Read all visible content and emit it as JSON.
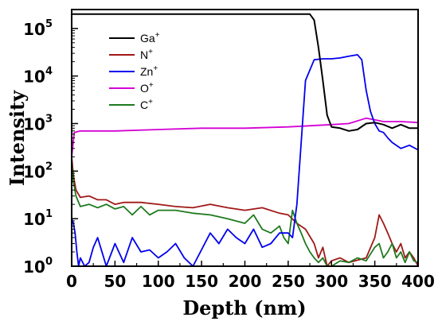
{
  "chart_data": {
    "type": "line",
    "xlabel": "Depth (nm)",
    "ylabel": "Intensity",
    "xlim": [
      0,
      400
    ],
    "ylim": [
      1,
      250000
    ],
    "yscale": "log",
    "grid": false,
    "legend_position": "top-left",
    "x_ticks": [
      "0",
      "50",
      "100",
      "150",
      "200",
      "250",
      "300",
      "350",
      "400"
    ],
    "y_ticks": [
      {
        "value": 1,
        "base": "10",
        "exp": "0"
      },
      {
        "value": 10,
        "base": "10",
        "exp": "1"
      },
      {
        "value": 100,
        "base": "10",
        "exp": "2"
      },
      {
        "value": 1000,
        "base": "10",
        "exp": "3"
      },
      {
        "value": 10000,
        "base": "10",
        "exp": "4"
      },
      {
        "value": 100000,
        "base": "10",
        "exp": "5"
      }
    ],
    "series": [
      {
        "name": "Ga",
        "sup": "+",
        "color": "#000000",
        "legend_row": 0,
        "x": [
          0,
          5,
          50,
          100,
          150,
          200,
          250,
          275,
          280,
          285,
          290,
          295,
          300,
          310,
          320,
          330,
          340,
          350,
          360,
          370,
          380,
          390,
          400
        ],
        "y": [
          200000,
          200000,
          200000,
          200000,
          200000,
          200000,
          200000,
          200000,
          150000,
          40000,
          8000,
          1500,
          850,
          800,
          700,
          750,
          1000,
          1050,
          950,
          800,
          950,
          800,
          800
        ]
      },
      {
        "name": "N",
        "sup": "+",
        "color": "#a01818",
        "legend_row": 1,
        "x": [
          0,
          2,
          5,
          10,
          20,
          30,
          40,
          50,
          60,
          80,
          100,
          120,
          140,
          160,
          180,
          200,
          220,
          240,
          250,
          260,
          270,
          280,
          285,
          290,
          295,
          300,
          310,
          320,
          340,
          350,
          355,
          360,
          365,
          370,
          375,
          380,
          385,
          390,
          395,
          400
        ],
        "y": [
          200,
          80,
          40,
          28,
          30,
          25,
          25,
          20,
          22,
          22,
          20,
          18,
          17,
          20,
          17,
          15,
          17,
          13,
          12,
          8,
          6,
          3,
          1.5,
          2.5,
          1,
          1.3,
          1.5,
          1.2,
          1.5,
          4,
          12,
          8,
          5,
          3,
          2,
          3,
          1.5,
          2,
          1.5,
          1
        ]
      },
      {
        "name": "Zn",
        "sup": "+",
        "color": "#0000ee",
        "legend_row": 2,
        "x": [
          0,
          2,
          4,
          6,
          8,
          10,
          15,
          20,
          25,
          30,
          40,
          50,
          60,
          70,
          80,
          90,
          100,
          110,
          120,
          130,
          140,
          160,
          170,
          180,
          190,
          200,
          210,
          220,
          230,
          240,
          250,
          255,
          260,
          265,
          270,
          280,
          290,
          300,
          310,
          320,
          330,
          335,
          340,
          345,
          350,
          355,
          360,
          365,
          370,
          380,
          390,
          400
        ],
        "y": [
          10,
          8,
          5,
          2,
          1,
          1.5,
          1,
          1.2,
          2.5,
          4,
          1,
          3,
          1.2,
          4,
          2,
          2.2,
          1.5,
          2,
          3,
          1.5,
          1,
          5,
          3,
          6,
          4,
          3,
          6,
          2.5,
          3,
          5,
          5,
          4,
          20,
          400,
          8000,
          22000,
          23000,
          23000,
          24000,
          26000,
          28000,
          22000,
          5000,
          1800,
          1000,
          700,
          650,
          500,
          400,
          300,
          350,
          280
        ]
      },
      {
        "name": "O",
        "sup": "+",
        "color": "#d400d4",
        "legend_row": 3,
        "x": [
          0,
          3,
          10,
          50,
          100,
          150,
          200,
          250,
          300,
          320,
          340,
          350,
          360,
          380,
          400
        ],
        "y": [
          200,
          650,
          700,
          700,
          750,
          800,
          800,
          850,
          950,
          1000,
          1300,
          1200,
          1100,
          1100,
          1050
        ]
      },
      {
        "name": "C",
        "sup": "+",
        "color": "#1e7a1e",
        "legend_row": 4,
        "x": [
          0,
          2,
          5,
          10,
          20,
          30,
          40,
          50,
          60,
          70,
          80,
          90,
          100,
          120,
          140,
          160,
          180,
          200,
          210,
          220,
          230,
          240,
          245,
          250,
          255,
          260,
          265,
          270,
          275,
          280,
          285,
          290,
          295,
          300,
          310,
          320,
          330,
          340,
          350,
          355,
          360,
          365,
          370,
          375,
          380,
          385,
          390,
          395,
          400
        ],
        "y": [
          150,
          60,
          30,
          18,
          20,
          17,
          20,
          16,
          18,
          12,
          18,
          12,
          15,
          15,
          13,
          12,
          10,
          8,
          12,
          6,
          5,
          7,
          4,
          3,
          15,
          8,
          5,
          3,
          2,
          1.5,
          1.2,
          1.5,
          1,
          1,
          1.3,
          1.2,
          1.5,
          1.3,
          2.5,
          3,
          1.5,
          2,
          3,
          1.5,
          2,
          1.2,
          2,
          1.3,
          1.2
        ]
      }
    ]
  }
}
